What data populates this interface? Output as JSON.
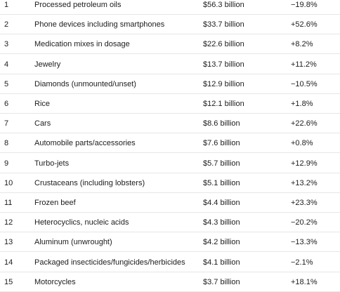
{
  "table": {
    "rows": [
      [
        "1",
        "Processed petroleum oils",
        "$56.3 billion",
        "−19.8%"
      ],
      [
        "2",
        "Phone devices including smartphones",
        "$33.7 billion",
        "+52.6%"
      ],
      [
        "3",
        "Medication mixes in dosage",
        "$22.6 billion",
        "+8.2%"
      ],
      [
        "4",
        "Jewelry",
        "$13.7 billion",
        "+11.2%"
      ],
      [
        "5",
        "Diamonds (unmounted/unset)",
        "$12.9 billion",
        "−10.5%"
      ],
      [
        "6",
        "Rice",
        "$12.1 billion",
        "+1.8%"
      ],
      [
        "7",
        "Cars",
        "$8.6 billion",
        "+22.6%"
      ],
      [
        "8",
        "Automobile parts/accessories",
        "$7.6 billion",
        "+0.8%"
      ],
      [
        "9",
        "Turbo-jets",
        "$5.7 billion",
        "+12.9%"
      ],
      [
        "10",
        "Crustaceans (including lobsters)",
        "$5.1 billion",
        "+13.2%"
      ],
      [
        "11",
        "Frozen beef",
        "$4.4 billion",
        "+23.3%"
      ],
      [
        "12",
        "Heterocyclics, nucleic acids",
        "$4.3 billion",
        "−20.2%"
      ],
      [
        "13",
        "Aluminum (unwrought)",
        "$4.2 billion",
        "−13.3%"
      ],
      [
        "14",
        "Packaged insecticides/fungicides/herbicides",
        "$4.1 billion",
        "−2.1%"
      ],
      [
        "15",
        "Motorcycles",
        "$3.7 billion",
        "+18.1%"
      ]
    ]
  }
}
